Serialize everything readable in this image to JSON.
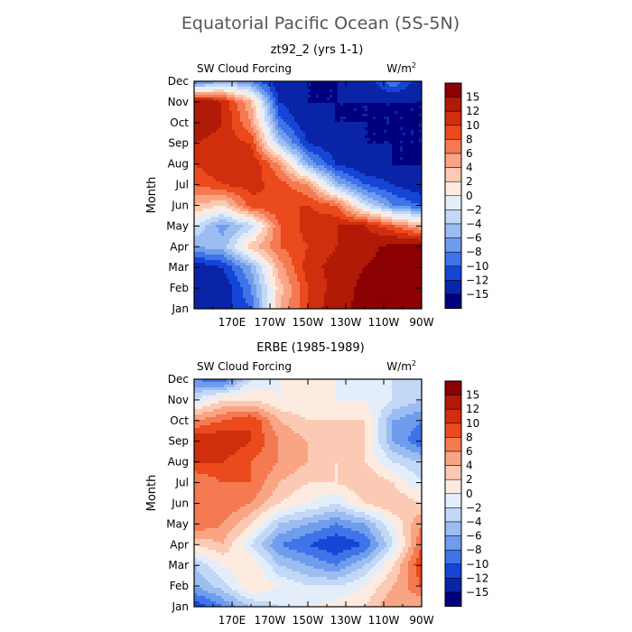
{
  "figure": {
    "title": "Equatorial Pacific Ocean (5S-5N)"
  },
  "colorbar": {
    "levels": [
      15,
      12,
      10,
      8,
      6,
      4,
      2,
      0,
      -2,
      -4,
      -6,
      -8,
      -10,
      -12,
      -15
    ],
    "labels": [
      "15",
      "12",
      "10",
      "8",
      "6",
      "4",
      "2",
      "0",
      "−2",
      "−4",
      "−6",
      "−8",
      "−10",
      "−12",
      "−15"
    ],
    "colors": [
      "#8b0000",
      "#b01a07",
      "#d02e0c",
      "#ea4a1c",
      "#f57a52",
      "#f9a584",
      "#fccab4",
      "#fdebe0",
      "#e4eefb",
      "#c3d8f6",
      "#9cbdf1",
      "#6f9ded",
      "#3f73e8",
      "#1545d6",
      "#0a24a8",
      "#00007f"
    ]
  },
  "chart_data": [
    {
      "type": "heatmap",
      "title": "zt92_2 (yrs 1-1)",
      "field_label": "SW Cloud Forcing",
      "units_label": "W/m",
      "units_exp": "2",
      "ylabel": "Month",
      "x_ticks": [
        "170E",
        "170W",
        "150W",
        "130W",
        "110W",
        "90W"
      ],
      "x_tick_lons": [
        170,
        190,
        210,
        230,
        250,
        270
      ],
      "xlim": [
        150,
        270
      ],
      "y_ticks": [
        "Jan",
        "Feb",
        "Mar",
        "Apr",
        "May",
        "Jun",
        "Jul",
        "Aug",
        "Sep",
        "Oct",
        "Nov",
        "Dec"
      ],
      "ylim": [
        1,
        12
      ],
      "cols": [
        150,
        165,
        180,
        195,
        210,
        225,
        240,
        255,
        270
      ],
      "rows": [
        "Jan",
        "Feb",
        "Mar",
        "Apr",
        "May",
        "Jun",
        "Jul",
        "Aug",
        "Sep",
        "Oct",
        "Nov",
        "Dec"
      ],
      "values": [
        [
          -14,
          -13,
          -10,
          4,
          10,
          14,
          16,
          16,
          16
        ],
        [
          -15,
          -14,
          -8,
          3,
          10,
          13,
          16,
          16,
          16
        ],
        [
          -14,
          -12,
          -6,
          5,
          11,
          13,
          15,
          16,
          16
        ],
        [
          -6,
          -5,
          3,
          8,
          10,
          12,
          14,
          16,
          16
        ],
        [
          -2,
          -7,
          -3,
          8,
          11,
          12,
          12,
          8,
          4
        ],
        [
          4,
          2,
          9,
          10,
          10,
          8,
          -2,
          -8,
          -10
        ],
        [
          8,
          10,
          11,
          9,
          6,
          -5,
          -10,
          -12,
          -14
        ],
        [
          10,
          12,
          12,
          6,
          -6,
          -12,
          -14,
          -15,
          -15
        ],
        [
          12,
          11,
          10,
          -4,
          -12,
          -14,
          -15,
          -15,
          -15
        ],
        [
          14,
          12,
          6,
          -9,
          -14,
          -15,
          -15,
          -15,
          -15
        ],
        [
          15,
          12,
          4,
          -12,
          -15,
          -15,
          -15,
          -15,
          -15
        ],
        [
          -10,
          -6,
          -8,
          -14,
          -15,
          -15,
          -14,
          -8,
          -14
        ]
      ]
    },
    {
      "type": "heatmap",
      "title": "ERBE (1985-1989)",
      "field_label": "SW Cloud Forcing",
      "units_label": "W/m",
      "units_exp": "2",
      "ylabel": "Month",
      "x_ticks": [
        "170E",
        "170W",
        "150W",
        "130W",
        "110W",
        "90W"
      ],
      "x_tick_lons": [
        170,
        190,
        210,
        230,
        250,
        270
      ],
      "xlim": [
        150,
        270
      ],
      "y_ticks": [
        "Jan",
        "Feb",
        "Mar",
        "Apr",
        "May",
        "Jun",
        "Jul",
        "Aug",
        "Sep",
        "Oct",
        "Nov",
        "Dec"
      ],
      "ylim": [
        1,
        12
      ],
      "cols": [
        150,
        165,
        180,
        195,
        210,
        225,
        240,
        255,
        270
      ],
      "rows": [
        "Jan",
        "Feb",
        "Mar",
        "Apr",
        "May",
        "Jun",
        "Jul",
        "Aug",
        "Sep",
        "Oct",
        "Nov",
        "Dec"
      ],
      "values": [
        [
          -12,
          -8,
          -4,
          -2,
          0,
          1,
          2,
          6,
          4
        ],
        [
          -6,
          -3,
          2,
          0,
          -2,
          -2,
          0,
          4,
          8
        ],
        [
          -4,
          0,
          2,
          -4,
          -6,
          -8,
          -4,
          2,
          10
        ],
        [
          2,
          4,
          -2,
          -8,
          -10,
          -12,
          -10,
          -2,
          8
        ],
        [
          8,
          6,
          2,
          -4,
          -6,
          -8,
          -6,
          0,
          6
        ],
        [
          6,
          8,
          6,
          2,
          0,
          -2,
          2,
          4,
          2
        ],
        [
          6,
          8,
          8,
          4,
          2,
          2,
          4,
          2,
          -2
        ],
        [
          10,
          10,
          8,
          6,
          4,
          2,
          2,
          -2,
          -4
        ],
        [
          12,
          12,
          10,
          6,
          4,
          4,
          2,
          -6,
          -10
        ],
        [
          6,
          8,
          10,
          4,
          2,
          2,
          2,
          -6,
          -8
        ],
        [
          -2,
          2,
          2,
          0,
          0,
          0,
          0,
          -2,
          -4
        ],
        [
          -8,
          -10,
          -2,
          0,
          2,
          0,
          0,
          -2,
          -4
        ]
      ]
    }
  ]
}
